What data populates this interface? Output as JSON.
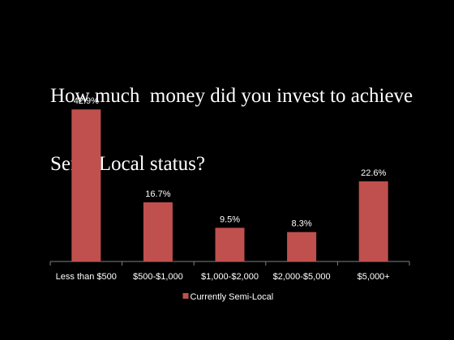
{
  "slide": {
    "title_line1": "How much  money did you invest to achieve",
    "title_line2": "Semi-Local status?"
  },
  "chart_data": {
    "type": "bar",
    "categories": [
      "Less than $500",
      "$500-$1,000",
      "$1,000-$2,000",
      "$2,000-$5,000",
      "$5,000+"
    ],
    "series": [
      {
        "name": "Currently Semi-Local",
        "values": [
          42.9,
          16.7,
          9.5,
          8.3,
          22.6
        ],
        "labels": [
          "42.9%",
          "16.7%",
          "9.5%",
          "8.3%",
          "22.6%"
        ]
      }
    ],
    "title": "How much  money did you invest to achieve Semi-Local status?",
    "xlabel": "",
    "ylabel": "",
    "ylim": [
      0,
      45
    ],
    "grid": false,
    "legend_position": "bottom",
    "colors": {
      "background": "#000000",
      "bar": "#C0504D",
      "text": "#ffffff",
      "axis": "#7f7f7f"
    }
  }
}
